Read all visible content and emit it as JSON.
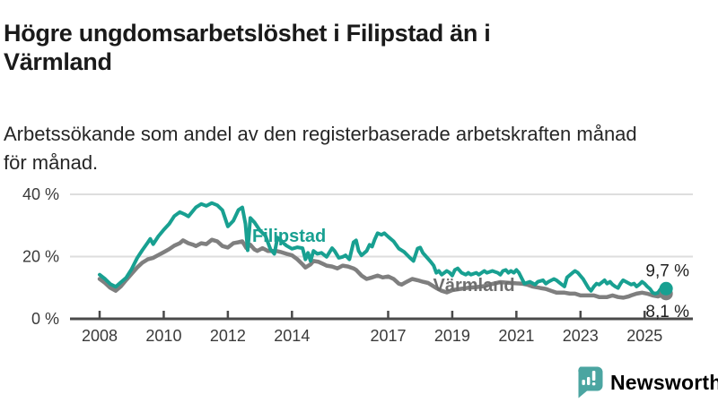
{
  "title": "Högre ungdomsarbetslöshet i Filipstad än i\nVärmland",
  "subtitle": "Arbetssökande som andel av den registerbaserade arbetskraften månad\nför månad.",
  "branding": {
    "logo_text": "Newsworthy",
    "logo_mark_color": "#4ba5a1",
    "logo_text_color": "#3f9f99"
  },
  "chart_data": {
    "type": "line",
    "title": "Högre ungdomsarbetslöshet i Filipstad än i Värmland",
    "subtitle": "Arbetssökande som andel av den registerbaserade arbetskraften månad för månad.",
    "xlabel": "",
    "ylabel": "",
    "grid": "horizontal",
    "gridline_values": [
      20,
      40
    ],
    "ylim": [
      0,
      44
    ],
    "xlim_years": [
      2007.1,
      2026.5
    ],
    "y_ticks": [
      {
        "label": "40 %",
        "value": 40
      },
      {
        "label": "20 %",
        "value": 20
      },
      {
        "label": "0 %",
        "value": 0
      }
    ],
    "x_ticks": [
      {
        "label": "2008",
        "value": 2008
      },
      {
        "label": "2010",
        "value": 2010
      },
      {
        "label": "2012",
        "value": 2012
      },
      {
        "label": "2014",
        "value": 2014
      },
      {
        "label": "2017",
        "value": 2017
      },
      {
        "label": "2019",
        "value": 2019
      },
      {
        "label": "2021",
        "value": 2021
      },
      {
        "label": "2023",
        "value": 2023
      },
      {
        "label": "2025",
        "value": 2025
      }
    ],
    "colors": {
      "filipstad": "#18a091",
      "varmland": "#7f7f7f",
      "varmland_label": "#6f6f6f",
      "axis": "#4a4a4a",
      "gridline": "#dedede",
      "tick_text": "#3a3a3a",
      "end_label_text": "#1f1f1f"
    },
    "series": [
      {
        "name": "Värmland",
        "key": "varmland",
        "color": "#7f7f7f",
        "end_label": "8,1 %",
        "end_value": 8.1,
        "label_anchor": {
          "year": 2018.4,
          "value": 8.9
        },
        "points": [
          [
            2008.0,
            12.8
          ],
          [
            2008.17,
            11.5
          ],
          [
            2008.33,
            10.0
          ],
          [
            2008.5,
            9.0
          ],
          [
            2008.67,
            10.5
          ],
          [
            2008.83,
            12.5
          ],
          [
            2009.0,
            14.5
          ],
          [
            2009.17,
            16.5
          ],
          [
            2009.33,
            18.0
          ],
          [
            2009.5,
            19.1
          ],
          [
            2009.67,
            19.6
          ],
          [
            2009.83,
            20.5
          ],
          [
            2010.0,
            21.4
          ],
          [
            2010.17,
            22.4
          ],
          [
            2010.33,
            23.5
          ],
          [
            2010.5,
            24.3
          ],
          [
            2010.6,
            25.2
          ],
          [
            2010.77,
            24.3
          ],
          [
            2010.92,
            23.8
          ],
          [
            2011.0,
            23.4
          ],
          [
            2011.17,
            24.3
          ],
          [
            2011.33,
            24.0
          ],
          [
            2011.5,
            25.4
          ],
          [
            2011.67,
            24.9
          ],
          [
            2011.83,
            23.4
          ],
          [
            2012.0,
            22.9
          ],
          [
            2012.17,
            24.3
          ],
          [
            2012.33,
            24.6
          ],
          [
            2012.45,
            24.9
          ],
          [
            2012.58,
            22.7
          ],
          [
            2012.7,
            23.8
          ],
          [
            2012.83,
            22.3
          ],
          [
            2012.92,
            21.8
          ],
          [
            2013.08,
            22.7
          ],
          [
            2013.25,
            21.8
          ],
          [
            2013.5,
            21.8
          ],
          [
            2013.67,
            21.4
          ],
          [
            2013.83,
            20.9
          ],
          [
            2014.0,
            20.4
          ],
          [
            2014.17,
            19.1
          ],
          [
            2014.33,
            17.5
          ],
          [
            2014.42,
            16.5
          ],
          [
            2014.58,
            17.5
          ],
          [
            2014.67,
            18.6
          ],
          [
            2014.83,
            18.3
          ],
          [
            2015.0,
            17.5
          ],
          [
            2015.08,
            17.1
          ],
          [
            2015.25,
            16.8
          ],
          [
            2015.42,
            16.2
          ],
          [
            2015.58,
            17.1
          ],
          [
            2015.75,
            16.8
          ],
          [
            2015.92,
            16.2
          ],
          [
            2016.0,
            15.7
          ],
          [
            2016.17,
            13.9
          ],
          [
            2016.33,
            12.8
          ],
          [
            2016.5,
            13.3
          ],
          [
            2016.67,
            13.9
          ],
          [
            2016.83,
            13.3
          ],
          [
            2017.0,
            13.6
          ],
          [
            2017.17,
            12.8
          ],
          [
            2017.33,
            11.3
          ],
          [
            2017.42,
            11.0
          ],
          [
            2017.58,
            11.9
          ],
          [
            2017.75,
            12.8
          ],
          [
            2017.92,
            12.4
          ],
          [
            2018.08,
            11.9
          ],
          [
            2018.25,
            11.5
          ],
          [
            2018.33,
            11.0
          ],
          [
            2018.5,
            9.9
          ],
          [
            2018.67,
            9.0
          ],
          [
            2018.83,
            8.5
          ],
          [
            2019.0,
            9.2
          ],
          [
            2019.25,
            9.6
          ],
          [
            2019.5,
            10.0
          ],
          [
            2019.75,
            10.2
          ],
          [
            2020.0,
            10.5
          ],
          [
            2020.25,
            11.2
          ],
          [
            2020.5,
            11.8
          ],
          [
            2020.75,
            11.6
          ],
          [
            2021.0,
            11.4
          ],
          [
            2021.17,
            11.3
          ],
          [
            2021.33,
            11.0
          ],
          [
            2021.5,
            10.4
          ],
          [
            2021.75,
            9.9
          ],
          [
            2021.92,
            9.6
          ],
          [
            2022.08,
            9.0
          ],
          [
            2022.25,
            8.4
          ],
          [
            2022.5,
            8.4
          ],
          [
            2022.67,
            8.1
          ],
          [
            2022.83,
            8.1
          ],
          [
            2023.0,
            7.5
          ],
          [
            2023.25,
            7.5
          ],
          [
            2023.42,
            7.5
          ],
          [
            2023.58,
            7.0
          ],
          [
            2023.83,
            7.0
          ],
          [
            2024.0,
            7.5
          ],
          [
            2024.17,
            7.0
          ],
          [
            2024.33,
            6.8
          ],
          [
            2024.5,
            7.2
          ],
          [
            2024.58,
            7.5
          ],
          [
            2024.75,
            8.1
          ],
          [
            2024.92,
            8.4
          ],
          [
            2025.08,
            8.1
          ],
          [
            2025.25,
            7.5
          ],
          [
            2025.42,
            7.2
          ],
          [
            2025.5,
            7.5
          ],
          [
            2025.67,
            8.1
          ]
        ]
      },
      {
        "name": "Filipstad",
        "key": "filipstad",
        "color": "#18a091",
        "end_label": "9,7 %",
        "end_value": 9.7,
        "label_anchor": {
          "year": 2012.76,
          "value": 24.7
        },
        "points": [
          [
            2008.0,
            14.2
          ],
          [
            2008.17,
            12.8
          ],
          [
            2008.33,
            11.2
          ],
          [
            2008.5,
            10.3
          ],
          [
            2008.67,
            11.8
          ],
          [
            2008.83,
            13.2
          ],
          [
            2009.0,
            16.0
          ],
          [
            2009.17,
            19.5
          ],
          [
            2009.33,
            22.0
          ],
          [
            2009.5,
            24.5
          ],
          [
            2009.58,
            25.7
          ],
          [
            2009.67,
            24.0
          ],
          [
            2009.83,
            26.5
          ],
          [
            2010.0,
            28.6
          ],
          [
            2010.17,
            30.5
          ],
          [
            2010.33,
            33.0
          ],
          [
            2010.5,
            34.3
          ],
          [
            2010.67,
            33.5
          ],
          [
            2010.77,
            32.9
          ],
          [
            2010.92,
            34.8
          ],
          [
            2011.0,
            35.8
          ],
          [
            2011.17,
            36.9
          ],
          [
            2011.33,
            36.3
          ],
          [
            2011.5,
            37.2
          ],
          [
            2011.67,
            36.5
          ],
          [
            2011.83,
            34.9
          ],
          [
            2012.0,
            29.7
          ],
          [
            2012.17,
            31.5
          ],
          [
            2012.33,
            35.0
          ],
          [
            2012.45,
            35.8
          ],
          [
            2012.55,
            30.5
          ],
          [
            2012.62,
            22.0
          ],
          [
            2012.7,
            32.4
          ],
          [
            2012.83,
            31.0
          ],
          [
            2013.0,
            28.4
          ],
          [
            2013.17,
            26.7
          ],
          [
            2013.33,
            22.3
          ],
          [
            2013.45,
            20.9
          ],
          [
            2013.55,
            26.1
          ],
          [
            2013.7,
            24.6
          ],
          [
            2013.83,
            23.5
          ],
          [
            2014.0,
            22.5
          ],
          [
            2014.17,
            23.0
          ],
          [
            2014.33,
            22.7
          ],
          [
            2014.42,
            19.1
          ],
          [
            2014.5,
            21.2
          ],
          [
            2014.58,
            18.6
          ],
          [
            2014.67,
            21.8
          ],
          [
            2014.79,
            20.9
          ],
          [
            2014.92,
            21.2
          ],
          [
            2015.08,
            19.9
          ],
          [
            2015.25,
            22.7
          ],
          [
            2015.33,
            21.8
          ],
          [
            2015.46,
            19.6
          ],
          [
            2015.58,
            19.9
          ],
          [
            2015.67,
            20.4
          ],
          [
            2015.79,
            19.1
          ],
          [
            2015.92,
            24.6
          ],
          [
            2016.0,
            25.2
          ],
          [
            2016.08,
            21.8
          ],
          [
            2016.17,
            20.4
          ],
          [
            2016.33,
            21.8
          ],
          [
            2016.42,
            23.8
          ],
          [
            2016.5,
            23.2
          ],
          [
            2016.58,
            25.5
          ],
          [
            2016.67,
            27.5
          ],
          [
            2016.79,
            27.0
          ],
          [
            2016.88,
            27.5
          ],
          [
            2017.0,
            26.4
          ],
          [
            2017.17,
            24.9
          ],
          [
            2017.33,
            22.6
          ],
          [
            2017.5,
            21.5
          ],
          [
            2017.67,
            19.7
          ],
          [
            2017.79,
            18.6
          ],
          [
            2017.92,
            22.6
          ],
          [
            2018.0,
            22.9
          ],
          [
            2018.08,
            21.2
          ],
          [
            2018.21,
            19.7
          ],
          [
            2018.33,
            18.3
          ],
          [
            2018.42,
            17.1
          ],
          [
            2018.5,
            14.8
          ],
          [
            2018.58,
            15.4
          ],
          [
            2018.67,
            14.2
          ],
          [
            2018.75,
            14.8
          ],
          [
            2018.83,
            15.4
          ],
          [
            2018.92,
            14.8
          ],
          [
            2019.0,
            13.9
          ],
          [
            2019.08,
            15.7
          ],
          [
            2019.17,
            16.2
          ],
          [
            2019.29,
            14.8
          ],
          [
            2019.42,
            14.2
          ],
          [
            2019.5,
            14.8
          ],
          [
            2019.58,
            14.2
          ],
          [
            2019.75,
            14.8
          ],
          [
            2019.83,
            14.2
          ],
          [
            2020.0,
            15.4
          ],
          [
            2020.08,
            14.8
          ],
          [
            2020.25,
            15.4
          ],
          [
            2020.42,
            14.8
          ],
          [
            2020.5,
            14.2
          ],
          [
            2020.58,
            15.4
          ],
          [
            2020.67,
            15.7
          ],
          [
            2020.75,
            14.8
          ],
          [
            2020.83,
            15.4
          ],
          [
            2020.92,
            14.8
          ],
          [
            2021.0,
            15.7
          ],
          [
            2021.08,
            14.8
          ],
          [
            2021.25,
            11.3
          ],
          [
            2021.42,
            11.9
          ],
          [
            2021.58,
            11.0
          ],
          [
            2021.67,
            11.9
          ],
          [
            2021.83,
            12.4
          ],
          [
            2021.92,
            11.3
          ],
          [
            2022.0,
            11.9
          ],
          [
            2022.17,
            12.8
          ],
          [
            2022.25,
            12.4
          ],
          [
            2022.42,
            11.0
          ],
          [
            2022.5,
            10.4
          ],
          [
            2022.58,
            13.3
          ],
          [
            2022.75,
            14.8
          ],
          [
            2022.83,
            15.4
          ],
          [
            2022.92,
            14.8
          ],
          [
            2023.08,
            12.8
          ],
          [
            2023.25,
            9.9
          ],
          [
            2023.33,
            9.0
          ],
          [
            2023.42,
            10.4
          ],
          [
            2023.5,
            11.3
          ],
          [
            2023.58,
            11.0
          ],
          [
            2023.75,
            12.4
          ],
          [
            2023.83,
            11.3
          ],
          [
            2023.92,
            11.9
          ],
          [
            2024.0,
            11.0
          ],
          [
            2024.08,
            10.4
          ],
          [
            2024.17,
            9.9
          ],
          [
            2024.25,
            11.3
          ],
          [
            2024.33,
            12.4
          ],
          [
            2024.42,
            11.9
          ],
          [
            2024.58,
            11.0
          ],
          [
            2024.67,
            11.3
          ],
          [
            2024.75,
            10.4
          ],
          [
            2024.83,
            11.0
          ],
          [
            2024.92,
            11.9
          ],
          [
            2025.0,
            11.3
          ],
          [
            2025.08,
            10.4
          ],
          [
            2025.17,
            9.6
          ],
          [
            2025.25,
            8.4
          ],
          [
            2025.33,
            8.1
          ],
          [
            2025.42,
            8.4
          ],
          [
            2025.5,
            9.6
          ],
          [
            2025.67,
            9.7
          ]
        ]
      }
    ]
  }
}
